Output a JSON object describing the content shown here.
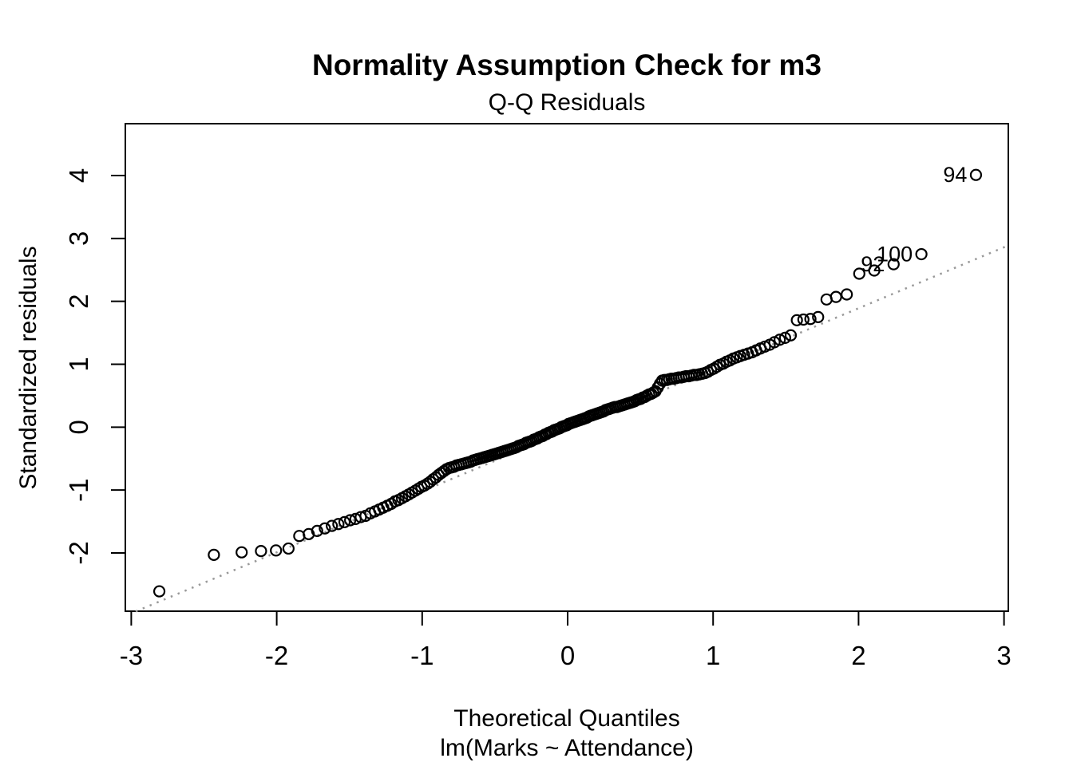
{
  "figure": {
    "background_color": "#ffffff",
    "foreground_color": "#000000"
  },
  "chart_data": {
    "type": "scatter",
    "title": "Normality Assumption Check for m3",
    "subtitle": "Q-Q Residuals",
    "xlabel": "Theoretical Quantiles",
    "xlabel2": "lm(Marks ~ Attendance)",
    "ylabel": "Standardized residuals",
    "x_ticks": [
      -3,
      -2,
      -1,
      0,
      1,
      2,
      3
    ],
    "y_ticks": [
      -2,
      -1,
      0,
      1,
      2,
      3,
      4
    ],
    "xlim": [
      -3.04,
      3.03
    ],
    "ylim": [
      -2.93,
      4.83
    ],
    "grid": false,
    "legend": null,
    "point_style": {
      "shape": "open-circle",
      "color": "#000000"
    },
    "reference_line": {
      "style": "dotted",
      "color": "#999999",
      "slope": 0.97,
      "intercept": -0.05
    },
    "labeled_points": [
      {
        "label": "94",
        "x": 2.807,
        "y": 4.01
      },
      {
        "label": "100",
        "x": 2.432,
        "y": 2.75
      },
      {
        "label": "92",
        "x": 2.241,
        "y": 2.59
      }
    ],
    "points": [
      [
        -2.807,
        -2.61
      ],
      [
        -2.432,
        -2.03
      ],
      [
        -2.241,
        -1.99
      ],
      [
        -2.108,
        -1.97
      ],
      [
        -2.005,
        -1.96
      ],
      [
        -1.919,
        -1.93
      ],
      [
        -1.845,
        -1.73
      ],
      [
        -1.78,
        -1.7
      ],
      [
        -1.722,
        -1.65
      ],
      [
        -1.669,
        -1.61
      ],
      [
        -1.621,
        -1.57
      ],
      [
        -1.576,
        -1.54
      ],
      [
        -1.534,
        -1.51
      ],
      [
        -1.495,
        -1.48
      ],
      [
        -1.458,
        -1.46
      ],
      [
        -1.422,
        -1.43
      ],
      [
        -1.389,
        -1.41
      ],
      [
        -1.356,
        -1.37
      ],
      [
        -1.325,
        -1.34
      ],
      [
        -1.296,
        -1.31
      ],
      [
        -1.268,
        -1.28
      ],
      [
        -1.24,
        -1.25
      ],
      [
        -1.213,
        -1.22
      ],
      [
        -1.187,
        -1.18
      ],
      [
        -1.163,
        -1.16
      ],
      [
        -1.139,
        -1.13
      ],
      [
        -1.115,
        -1.1
      ],
      [
        -1.092,
        -1.07
      ],
      [
        -1.07,
        -1.04
      ],
      [
        -1.047,
        -1.01
      ],
      [
        -1.026,
        -0.98
      ],
      [
        -1.005,
        -0.95
      ],
      [
        -0.985,
        -0.93
      ],
      [
        -0.964,
        -0.9
      ],
      [
        -0.945,
        -0.87
      ],
      [
        -0.925,
        -0.83
      ],
      [
        -0.906,
        -0.8
      ],
      [
        -0.887,
        -0.76
      ],
      [
        -0.869,
        -0.73
      ],
      [
        -0.851,
        -0.7
      ],
      [
        -0.833,
        -0.67
      ],
      [
        -0.815,
        -0.65
      ],
      [
        -0.798,
        -0.64
      ],
      [
        -0.781,
        -0.63
      ],
      [
        -0.764,
        -0.61
      ],
      [
        -0.747,
        -0.6
      ],
      [
        -0.73,
        -0.59
      ],
      [
        -0.714,
        -0.58
      ],
      [
        -0.698,
        -0.57
      ],
      [
        -0.682,
        -0.56
      ],
      [
        -0.666,
        -0.55
      ],
      [
        -0.65,
        -0.53
      ],
      [
        -0.635,
        -0.52
      ],
      [
        -0.62,
        -0.51
      ],
      [
        -0.604,
        -0.5
      ],
      [
        -0.589,
        -0.49
      ],
      [
        -0.575,
        -0.48
      ],
      [
        -0.56,
        -0.47
      ],
      [
        -0.545,
        -0.46
      ],
      [
        -0.531,
        -0.45
      ],
      [
        -0.517,
        -0.44
      ],
      [
        -0.502,
        -0.43
      ],
      [
        -0.488,
        -0.42
      ],
      [
        -0.474,
        -0.41
      ],
      [
        -0.46,
        -0.4
      ],
      [
        -0.447,
        -0.39
      ],
      [
        -0.433,
        -0.38
      ],
      [
        -0.419,
        -0.37
      ],
      [
        -0.406,
        -0.36
      ],
      [
        -0.392,
        -0.35
      ],
      [
        -0.379,
        -0.34
      ],
      [
        -0.365,
        -0.33
      ],
      [
        -0.352,
        -0.32
      ],
      [
        -0.339,
        -0.3
      ],
      [
        -0.326,
        -0.29
      ],
      [
        -0.312,
        -0.28
      ],
      [
        -0.299,
        -0.27
      ],
      [
        -0.286,
        -0.25
      ],
      [
        -0.273,
        -0.24
      ],
      [
        -0.26,
        -0.23
      ],
      [
        -0.247,
        -0.22
      ],
      [
        -0.234,
        -0.2
      ],
      [
        -0.221,
        -0.19
      ],
      [
        -0.208,
        -0.18
      ],
      [
        -0.196,
        -0.16
      ],
      [
        -0.183,
        -0.15
      ],
      [
        -0.17,
        -0.14
      ],
      [
        -0.157,
        -0.12
      ],
      [
        -0.145,
        -0.11
      ],
      [
        -0.132,
        -0.09
      ],
      [
        -0.119,
        -0.08
      ],
      [
        -0.107,
        -0.07
      ],
      [
        -0.094,
        -0.05
      ],
      [
        -0.082,
        -0.04
      ],
      [
        -0.069,
        -0.03
      ],
      [
        -0.056,
        -0.02
      ],
      [
        -0.044,
        0.0
      ],
      [
        -0.031,
        0.01
      ],
      [
        -0.019,
        0.02
      ],
      [
        -0.006,
        0.03
      ],
      [
        0.006,
        0.05
      ],
      [
        0.019,
        0.06
      ],
      [
        0.031,
        0.07
      ],
      [
        0.044,
        0.08
      ],
      [
        0.056,
        0.09
      ],
      [
        0.069,
        0.1
      ],
      [
        0.082,
        0.11
      ],
      [
        0.094,
        0.12
      ],
      [
        0.107,
        0.13
      ],
      [
        0.119,
        0.14
      ],
      [
        0.132,
        0.15
      ],
      [
        0.145,
        0.17
      ],
      [
        0.157,
        0.18
      ],
      [
        0.17,
        0.19
      ],
      [
        0.183,
        0.2
      ],
      [
        0.196,
        0.21
      ],
      [
        0.208,
        0.22
      ],
      [
        0.221,
        0.23
      ],
      [
        0.234,
        0.24
      ],
      [
        0.247,
        0.25
      ],
      [
        0.26,
        0.27
      ],
      [
        0.273,
        0.28
      ],
      [
        0.286,
        0.29
      ],
      [
        0.299,
        0.3
      ],
      [
        0.312,
        0.31
      ],
      [
        0.326,
        0.32
      ],
      [
        0.339,
        0.32
      ],
      [
        0.352,
        0.33
      ],
      [
        0.365,
        0.34
      ],
      [
        0.379,
        0.35
      ],
      [
        0.392,
        0.36
      ],
      [
        0.406,
        0.37
      ],
      [
        0.419,
        0.38
      ],
      [
        0.433,
        0.39
      ],
      [
        0.447,
        0.4
      ],
      [
        0.46,
        0.41
      ],
      [
        0.474,
        0.43
      ],
      [
        0.488,
        0.44
      ],
      [
        0.502,
        0.45
      ],
      [
        0.517,
        0.47
      ],
      [
        0.531,
        0.48
      ],
      [
        0.545,
        0.5
      ],
      [
        0.56,
        0.52
      ],
      [
        0.575,
        0.53
      ],
      [
        0.589,
        0.55
      ],
      [
        0.604,
        0.57
      ],
      [
        0.62,
        0.63
      ],
      [
        0.635,
        0.69
      ],
      [
        0.65,
        0.74
      ],
      [
        0.666,
        0.75
      ],
      [
        0.682,
        0.75
      ],
      [
        0.698,
        0.76
      ],
      [
        0.714,
        0.77
      ],
      [
        0.73,
        0.77
      ],
      [
        0.747,
        0.78
      ],
      [
        0.764,
        0.79
      ],
      [
        0.781,
        0.79
      ],
      [
        0.798,
        0.8
      ],
      [
        0.815,
        0.81
      ],
      [
        0.833,
        0.81
      ],
      [
        0.851,
        0.82
      ],
      [
        0.869,
        0.83
      ],
      [
        0.887,
        0.83
      ],
      [
        0.906,
        0.84
      ],
      [
        0.925,
        0.85
      ],
      [
        0.945,
        0.86
      ],
      [
        0.964,
        0.88
      ],
      [
        0.985,
        0.91
      ],
      [
        1.005,
        0.93
      ],
      [
        1.026,
        0.96
      ],
      [
        1.047,
        0.99
      ],
      [
        1.07,
        1.01
      ],
      [
        1.092,
        1.04
      ],
      [
        1.115,
        1.06
      ],
      [
        1.139,
        1.09
      ],
      [
        1.163,
        1.11
      ],
      [
        1.187,
        1.13
      ],
      [
        1.213,
        1.15
      ],
      [
        1.24,
        1.17
      ],
      [
        1.268,
        1.19
      ],
      [
        1.296,
        1.22
      ],
      [
        1.325,
        1.25
      ],
      [
        1.356,
        1.28
      ],
      [
        1.389,
        1.31
      ],
      [
        1.422,
        1.35
      ],
      [
        1.458,
        1.39
      ],
      [
        1.495,
        1.42
      ],
      [
        1.534,
        1.46
      ],
      [
        1.576,
        1.7
      ],
      [
        1.621,
        1.71
      ],
      [
        1.669,
        1.72
      ],
      [
        1.722,
        1.75
      ],
      [
        1.78,
        2.03
      ],
      [
        1.845,
        2.07
      ],
      [
        1.919,
        2.11
      ],
      [
        2.005,
        2.44
      ],
      [
        2.108,
        2.49
      ],
      [
        2.241,
        2.59
      ],
      [
        2.432,
        2.75
      ],
      [
        2.807,
        4.01
      ]
    ]
  }
}
